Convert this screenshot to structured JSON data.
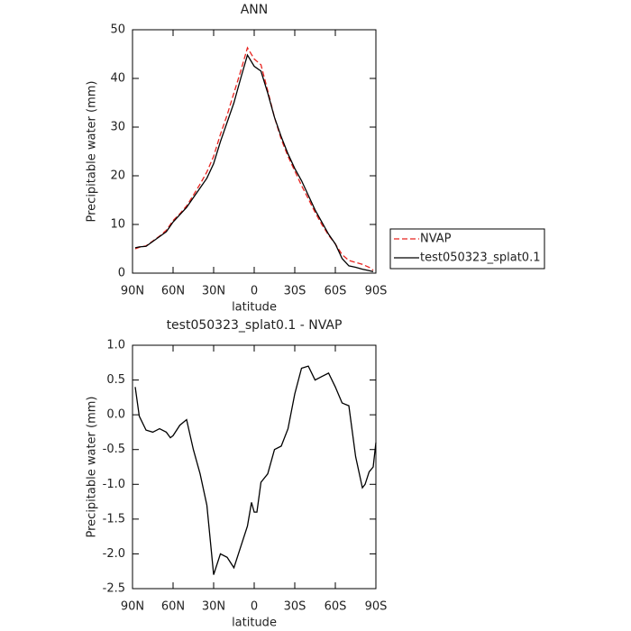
{
  "chart_data": [
    {
      "type": "line",
      "title": "ANN",
      "xlabel": "latitude",
      "ylabel": "Precipitable water (mm)",
      "x": [
        88,
        85,
        80,
        75,
        70,
        65,
        60,
        55,
        50,
        45,
        40,
        35,
        30,
        25,
        20,
        15,
        10,
        5,
        0,
        -5,
        -10,
        -15,
        -20,
        -25,
        -30,
        -35,
        -40,
        -45,
        -50,
        -55,
        -60,
        -65,
        -70,
        -75,
        -80,
        -85,
        -88
      ],
      "series": [
        {
          "name": "NVAP",
          "color": "#e8231f",
          "dash": true,
          "values": [
            5.0,
            5.3,
            5.6,
            6.6,
            7.6,
            8.8,
            10.8,
            12.2,
            13.8,
            16.0,
            18.3,
            20.8,
            24.0,
            28.5,
            32.5,
            37.0,
            41.5,
            46.3,
            44.0,
            42.8,
            37.5,
            32.0,
            27.5,
            24.0,
            21.0,
            18.0,
            15.3,
            12.5,
            10.0,
            7.8,
            6.0,
            3.8,
            2.6,
            2.2,
            1.8,
            1.2,
            0.6
          ]
        },
        {
          "name": "test050323_splat0.1",
          "color": "#000000",
          "dash": false,
          "values": [
            5.2,
            5.4,
            5.5,
            6.5,
            7.5,
            8.5,
            10.5,
            12.0,
            13.5,
            15.5,
            17.5,
            19.5,
            22.5,
            27.0,
            31.0,
            35.0,
            40.0,
            44.8,
            42.5,
            41.5,
            37.0,
            32.0,
            28.0,
            24.5,
            21.5,
            19.0,
            16.0,
            13.0,
            10.5,
            8.0,
            6.0,
            3.0,
            1.5,
            1.2,
            0.8,
            0.5,
            0.3
          ]
        }
      ],
      "xlim": [
        90,
        -90
      ],
      "xticks": [
        {
          "value": 90,
          "label": "90N"
        },
        {
          "value": 60,
          "label": "60N"
        },
        {
          "value": 30,
          "label": "30N"
        },
        0,
        {
          "value": -30,
          "label": "30S"
        },
        {
          "value": -60,
          "label": "60S"
        },
        {
          "value": -90,
          "label": "90S"
        }
      ],
      "ylim": [
        0,
        50
      ],
      "yticks": [
        0,
        10,
        20,
        30,
        40,
        50
      ],
      "legend": "right"
    },
    {
      "type": "line",
      "title": "test050323_splat0.1 - NVAP",
      "xlabel": "latitude",
      "ylabel": "Precipitable water (mm)",
      "x": [
        88,
        85,
        80,
        75,
        70,
        65,
        62,
        60,
        55,
        50,
        45,
        40,
        35,
        30,
        25,
        20,
        15,
        10,
        5,
        2,
        0,
        -2,
        -5,
        -10,
        -15,
        -20,
        -25,
        -30,
        -35,
        -40,
        -45,
        -50,
        -55,
        -60,
        -65,
        -70,
        -75,
        -80,
        -82,
        -85,
        -88,
        -90
      ],
      "series": [
        {
          "name": "test050323_splat0.1 - NVAP",
          "color": "#000000",
          "dash": false,
          "values": [
            0.4,
            -0.02,
            -0.22,
            -0.25,
            -0.2,
            -0.25,
            -0.33,
            -0.3,
            -0.15,
            -0.07,
            -0.5,
            -0.85,
            -1.3,
            -2.3,
            -2.0,
            -2.05,
            -2.2,
            -1.9,
            -1.6,
            -1.26,
            -1.4,
            -1.4,
            -0.97,
            -0.85,
            -0.5,
            -0.45,
            -0.2,
            0.3,
            0.67,
            0.7,
            0.5,
            0.55,
            0.6,
            0.4,
            0.17,
            0.13,
            -0.6,
            -1.05,
            -1.0,
            -0.82,
            -0.75,
            -0.4
          ]
        }
      ],
      "xlim": [
        90,
        -90
      ],
      "xticks": [
        {
          "value": 90,
          "label": "90N"
        },
        {
          "value": 60,
          "label": "60N"
        },
        {
          "value": 30,
          "label": "30N"
        },
        0,
        {
          "value": -30,
          "label": "30S"
        },
        {
          "value": -60,
          "label": "60S"
        },
        {
          "value": -90,
          "label": "90S"
        }
      ],
      "ylim": [
        -2.5,
        1.0
      ],
      "yticks": [
        {
          "value": -2.5,
          "label": "-2.5"
        },
        {
          "value": -2.0,
          "label": "-2.0"
        },
        {
          "value": -1.5,
          "label": "-1.5"
        },
        {
          "value": -1.0,
          "label": "-1.0"
        },
        {
          "value": -0.5,
          "label": "-0.5"
        },
        {
          "value": 0.0,
          "label": "0.0"
        },
        {
          "value": 0.5,
          "label": "0.5"
        },
        {
          "value": 1.0,
          "label": "1.0"
        }
      ]
    }
  ]
}
